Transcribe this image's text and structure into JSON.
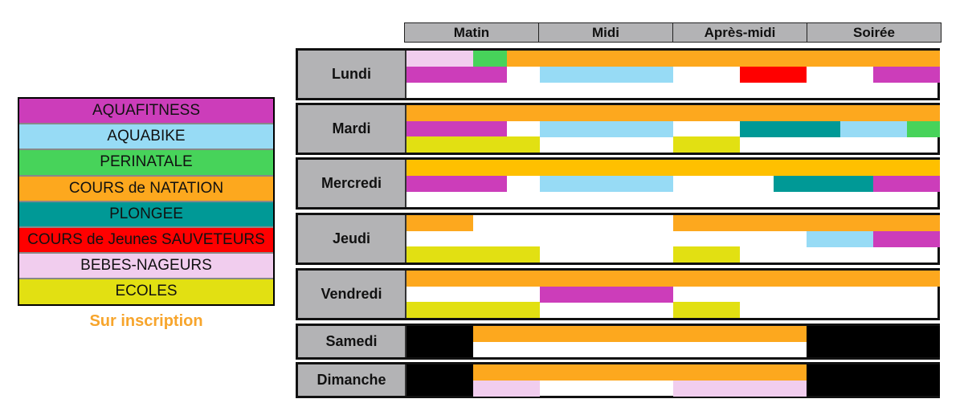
{
  "legend": {
    "items": [
      {
        "label": "AQUAFITNESS",
        "key": "aquafitness",
        "color": "#CC3DBA"
      },
      {
        "label": "AQUABIKE",
        "key": "aquabike",
        "color": "#97DBF5"
      },
      {
        "label": "PERINATALE",
        "key": "perinatale",
        "color": "#47D35A"
      },
      {
        "label": "COURS de NATATION",
        "key": "natation",
        "color": "#FDA81E"
      },
      {
        "label": "PLONGEE",
        "key": "plongee",
        "color": "#009996"
      },
      {
        "label": "COURS de Jeunes SAUVETEURS",
        "key": "sauveteurs",
        "color": "#FF0000"
      },
      {
        "label": "BEBES-NAGEURS",
        "key": "bebes",
        "color": "#F1CDEE"
      },
      {
        "label": "ECOLES",
        "key": "ecoles",
        "color": "#E2E012"
      }
    ],
    "note": "Sur inscription"
  },
  "periods": [
    "Matin",
    "Midi",
    "Après-midi",
    "Soirée"
  ],
  "slot_unit": "half of a quarter of a period (16 slots per day)",
  "closed_color": "#000000",
  "days": [
    {
      "name": "Lundi",
      "rows": 3,
      "blocks": [
        {
          "row": 0,
          "start": 0,
          "end": 2,
          "activity": "bebes"
        },
        {
          "row": 0,
          "start": 2,
          "end": 3,
          "activity": "perinatale"
        },
        {
          "row": 0,
          "start": 3,
          "end": 16,
          "activity": "natation"
        },
        {
          "row": 1,
          "start": 0,
          "end": 3,
          "activity": "aquafitness"
        },
        {
          "row": 1,
          "start": 4,
          "end": 8,
          "activity": "aquabike"
        },
        {
          "row": 1,
          "start": 10,
          "end": 12,
          "activity": "sauveteurs"
        },
        {
          "row": 1,
          "start": 14,
          "end": 16,
          "activity": "aquafitness"
        }
      ]
    },
    {
      "name": "Mardi",
      "rows": 3,
      "blocks": [
        {
          "row": 0,
          "start": 0,
          "end": 16,
          "activity": "natation"
        },
        {
          "row": 1,
          "start": 0,
          "end": 3,
          "activity": "aquafitness"
        },
        {
          "row": 1,
          "start": 4,
          "end": 8,
          "activity": "aquabike"
        },
        {
          "row": 1,
          "start": 10,
          "end": 13,
          "activity": "plongee"
        },
        {
          "row": 1,
          "start": 13,
          "end": 15,
          "activity": "aquabike"
        },
        {
          "row": 1,
          "start": 15,
          "end": 16,
          "activity": "perinatale"
        },
        {
          "row": 2,
          "start": 0,
          "end": 4,
          "activity": "ecoles"
        },
        {
          "row": 2,
          "start": 8,
          "end": 10,
          "activity": "ecoles"
        }
      ]
    },
    {
      "name": "Mercredi",
      "rows": 3,
      "blocks": [
        {
          "row": 0,
          "start": 0,
          "end": 16,
          "activity": "natation",
          "color": "#FFC000"
        },
        {
          "row": 1,
          "start": 0,
          "end": 3,
          "activity": "aquafitness"
        },
        {
          "row": 1,
          "start": 4,
          "end": 8,
          "activity": "aquabike"
        },
        {
          "row": 1,
          "start": 11,
          "end": 14,
          "activity": "plongee"
        },
        {
          "row": 1,
          "start": 14,
          "end": 16,
          "activity": "aquafitness"
        }
      ]
    },
    {
      "name": "Jeudi",
      "rows": 3,
      "blocks": [
        {
          "row": 0,
          "start": 0,
          "end": 2,
          "activity": "natation"
        },
        {
          "row": 0,
          "start": 8,
          "end": 16,
          "activity": "natation"
        },
        {
          "row": 1,
          "start": 12,
          "end": 14,
          "activity": "aquabike"
        },
        {
          "row": 1,
          "start": 14,
          "end": 16,
          "activity": "aquafitness"
        },
        {
          "row": 2,
          "start": 0,
          "end": 4,
          "activity": "ecoles"
        },
        {
          "row": 2,
          "start": 8,
          "end": 10,
          "activity": "ecoles"
        }
      ]
    },
    {
      "name": "Vendredi",
      "rows": 3,
      "blocks": [
        {
          "row": 0,
          "start": 0,
          "end": 16,
          "activity": "natation"
        },
        {
          "row": 1,
          "start": 4,
          "end": 8,
          "activity": "aquafitness"
        },
        {
          "row": 2,
          "start": 0,
          "end": 4,
          "activity": "ecoles"
        },
        {
          "row": 2,
          "start": 8,
          "end": 10,
          "activity": "ecoles"
        }
      ]
    },
    {
      "name": "Samedi",
      "rows": 2,
      "closed": [
        [
          0,
          2
        ],
        [
          12,
          16
        ]
      ],
      "blocks": [
        {
          "row": 0,
          "start": 2,
          "end": 12,
          "activity": "natation"
        }
      ]
    },
    {
      "name": "Dimanche",
      "rows": 2,
      "closed": [
        [
          0,
          2
        ],
        [
          12,
          16
        ]
      ],
      "blocks": [
        {
          "row": 0,
          "start": 2,
          "end": 12,
          "activity": "natation"
        },
        {
          "row": 1,
          "start": 2,
          "end": 4,
          "activity": "bebes"
        },
        {
          "row": 1,
          "start": 8,
          "end": 12,
          "activity": "bebes"
        }
      ]
    }
  ]
}
